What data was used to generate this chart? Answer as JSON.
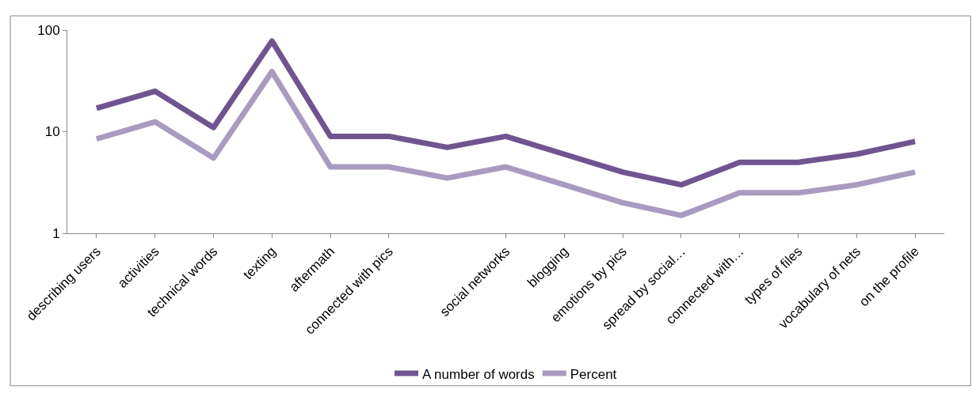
{
  "chart_data": {
    "type": "line",
    "categories": [
      "describing users",
      "activities",
      "technical words",
      "texting",
      "aftermath",
      "connected with pics",
      null,
      "social networks",
      "blogging",
      "emotions by pics",
      "spread by social…",
      "connected with…",
      "types of files",
      "vocabulary of nets",
      "on the profile"
    ],
    "series": [
      {
        "name": "A number of words",
        "color": "#6f5590",
        "values": [
          17,
          25,
          11,
          78,
          9,
          9,
          7,
          9,
          6,
          4,
          3,
          5,
          5,
          6,
          8
        ]
      },
      {
        "name": "Percent",
        "color": "#a99bc0",
        "values": [
          8.5,
          12.5,
          5.5,
          39,
          4.5,
          4.5,
          3.5,
          4.5,
          3,
          2,
          1.5,
          2.5,
          2.5,
          3,
          4
        ]
      }
    ],
    "log": "y",
    "ylim": [
      1,
      100
    ],
    "yticks": [
      1,
      10,
      100
    ],
    "legend": "bottom",
    "marker": "none",
    "line_style": "solid"
  }
}
